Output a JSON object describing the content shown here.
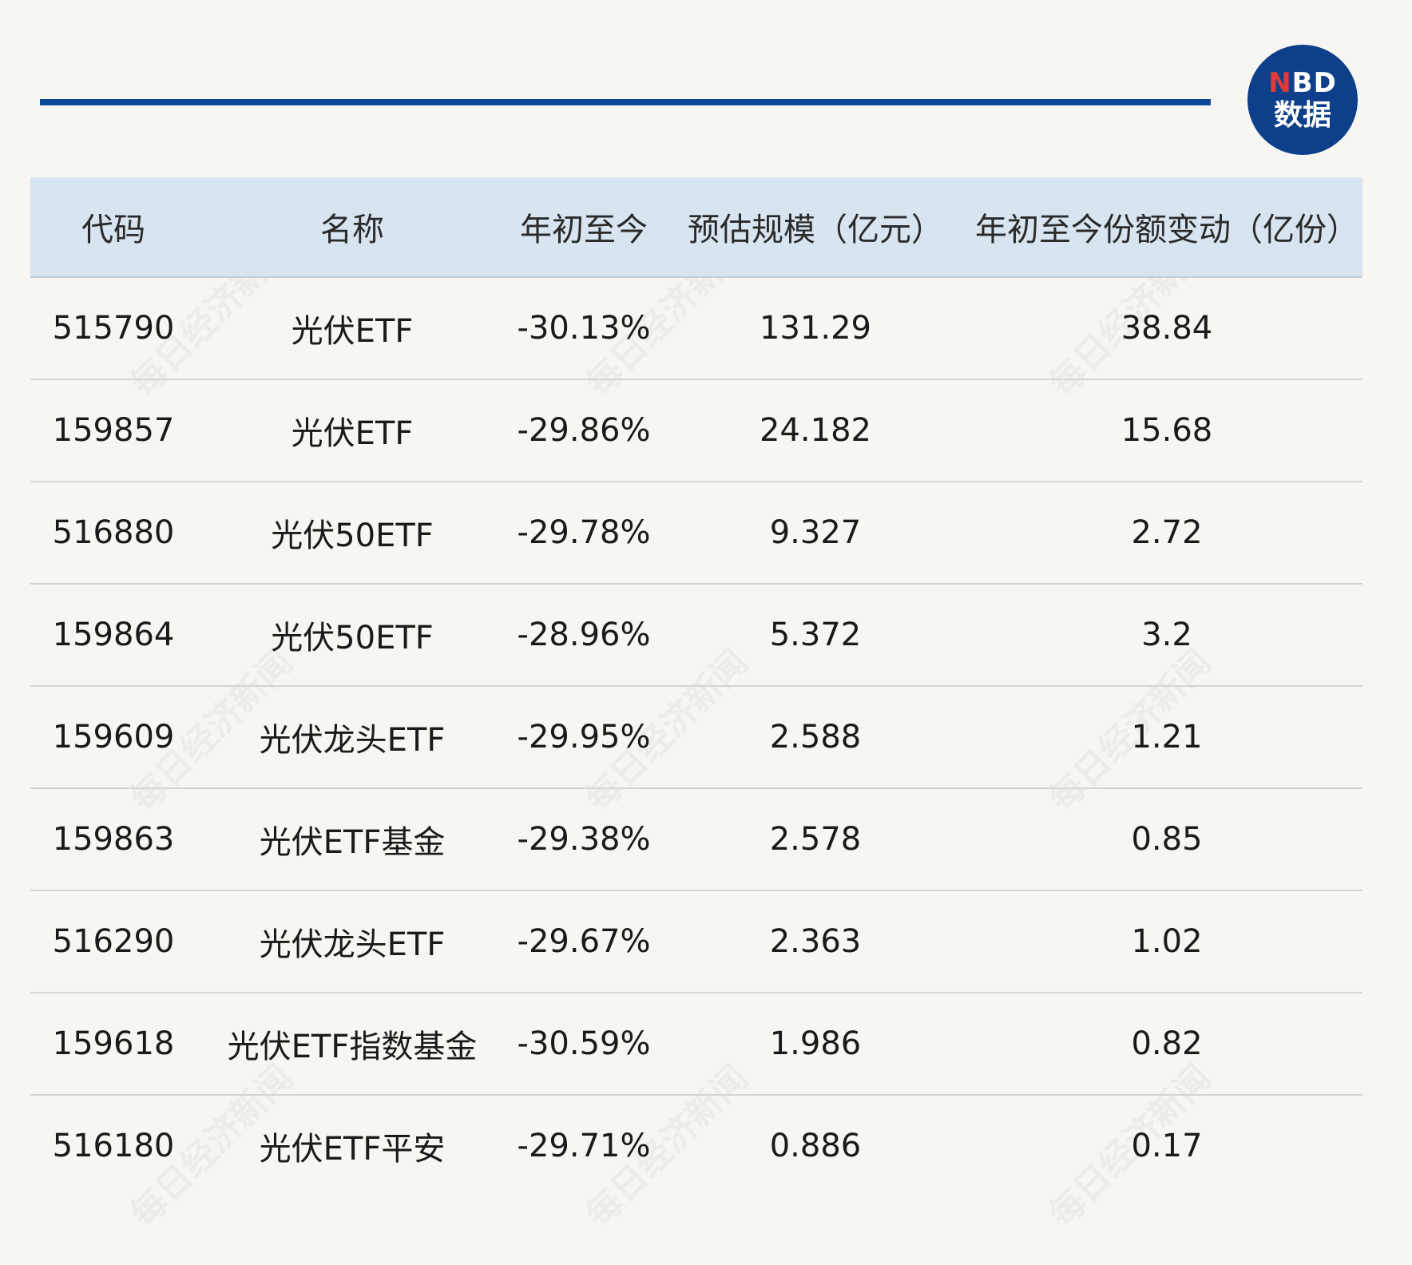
{
  "logo": {
    "line1_red": "N",
    "line1_rest": "BD",
    "line2": "数据"
  },
  "watermark": "每日经济新闻",
  "table": {
    "headers": [
      "代码",
      "名称",
      "年初至今",
      "预估规模（亿元）",
      "年初至今份额变动（亿份）"
    ],
    "rows": [
      [
        "515790",
        "光伏ETF",
        "-30.13%",
        "131.29",
        "38.84"
      ],
      [
        "159857",
        "光伏ETF",
        "-29.86%",
        "24.182",
        "15.68"
      ],
      [
        "516880",
        "光伏50ETF",
        "-29.78%",
        "9.327",
        "2.72"
      ],
      [
        "159864",
        "光伏50ETF",
        "-28.96%",
        "5.372",
        "3.2"
      ],
      [
        "159609",
        "光伏龙头ETF",
        "-29.95%",
        "2.588",
        "1.21"
      ],
      [
        "159863",
        "光伏ETF基金",
        "-29.38%",
        "2.578",
        "0.85"
      ],
      [
        "516290",
        "光伏龙头ETF",
        "-29.67%",
        "2.363",
        "1.02"
      ],
      [
        "159618",
        "光伏ETF指数基金",
        "-30.59%",
        "1.986",
        "0.82"
      ],
      [
        "516180",
        "光伏ETF平安",
        "-29.71%",
        "0.886",
        "0.17"
      ]
    ]
  }
}
